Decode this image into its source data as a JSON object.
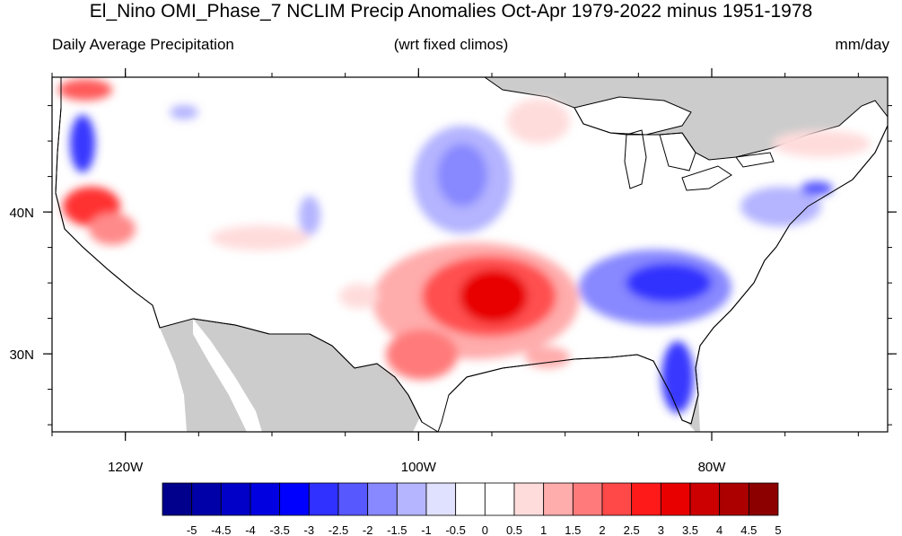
{
  "title": "El_Nino OMI_Phase_7 NCLIM Precip Anomalies Oct-Apr 1979-2022 minus 1951-1978",
  "subtitle_left": "Daily Average Precipitation",
  "subtitle_center": "(wrt fixed climos)",
  "subtitle_right": "mm/day",
  "map": {
    "lon_range": [
      -125,
      -68
    ],
    "lat_range": [
      24.5,
      49.5
    ],
    "lon_ticks": [
      {
        "value": -120,
        "label": "120W"
      },
      {
        "value": -100,
        "label": "100W"
      },
      {
        "value": -80,
        "label": "80W"
      }
    ],
    "lat_ticks": [
      {
        "value": 40,
        "label": "40N"
      },
      {
        "value": 30,
        "label": "30N"
      }
    ],
    "colors": {
      "land_outside": "#cccccc",
      "water": "#ffffff",
      "coast": "#000000"
    }
  },
  "colorbar": {
    "labels": [
      "-5",
      "-4.5",
      "-4",
      "-3.5",
      "-3",
      "-2.5",
      "-2",
      "-1.5",
      "-1",
      "-0.5",
      "0",
      "0.5",
      "1",
      "1.5",
      "2",
      "2.5",
      "3",
      "3.5",
      "4",
      "4.5",
      "5"
    ],
    "colors": [
      "#00008c",
      "#0000a8",
      "#0000c8",
      "#0000e0",
      "#0000ff",
      "#3030ff",
      "#5858ff",
      "#8888ff",
      "#b4b4ff",
      "#e0e0ff",
      "#ffffff",
      "#ffffff",
      "#ffdcdc",
      "#ffacac",
      "#ff7a7a",
      "#ff4848",
      "#ff1a1a",
      "#e80000",
      "#cc0000",
      "#ac0000",
      "#8c0000"
    ]
  }
}
